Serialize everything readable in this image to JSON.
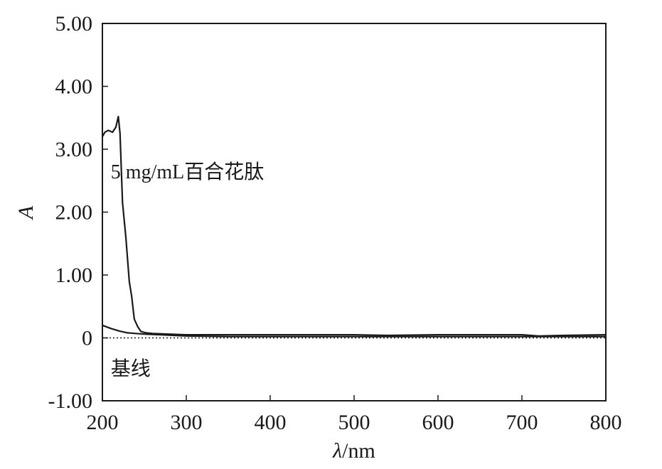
{
  "chart_data": {
    "type": "line",
    "xlabel_symbol": "λ",
    "xlabel_unit": "/nm",
    "ylabel": "A",
    "xlim": [
      200,
      800
    ],
    "ylim": [
      -1.0,
      5.0
    ],
    "x_ticks": [
      200,
      300,
      400,
      500,
      600,
      700,
      800
    ],
    "x_tick_labels": [
      "200",
      "300",
      "400",
      "500",
      "600",
      "700",
      "800"
    ],
    "y_ticks": [
      5.0,
      4.0,
      3.0,
      2.0,
      1.0,
      0,
      -1.0
    ],
    "y_tick_labels": [
      "5.00",
      "4.00",
      "3.00",
      "2.00",
      "1.00",
      "0",
      "-1.00"
    ],
    "grid": false,
    "series": [
      {
        "name": "5 mg/mL百合花肽",
        "style": "solid",
        "x": [
          200,
          203,
          207,
          212,
          216,
          219,
          221,
          224,
          228,
          232,
          235,
          238,
          242,
          246,
          252,
          260,
          280,
          300,
          400,
          500,
          540,
          600,
          700,
          720,
          750,
          800
        ],
        "y": [
          3.2,
          3.27,
          3.3,
          3.27,
          3.35,
          3.52,
          3.25,
          2.15,
          1.6,
          0.9,
          0.65,
          0.3,
          0.18,
          0.1,
          0.08,
          0.07,
          0.06,
          0.05,
          0.05,
          0.05,
          0.04,
          0.05,
          0.05,
          0.03,
          0.04,
          0.05
        ]
      },
      {
        "name": "",
        "style": "solid",
        "x": [
          200,
          210,
          220,
          230,
          240,
          250,
          270,
          300,
          350,
          400,
          500,
          600,
          700,
          720,
          760,
          800
        ],
        "y": [
          0.2,
          0.15,
          0.11,
          0.08,
          0.07,
          0.06,
          0.05,
          0.03,
          0.02,
          0.02,
          0.02,
          0.02,
          0.02,
          0.02,
          0.02,
          0.02
        ]
      },
      {
        "name": "基线",
        "style": "dotted",
        "x": [
          200,
          800
        ],
        "y": [
          0,
          0
        ]
      }
    ],
    "annotations": [
      {
        "text": "5 mg/mL百合花肽",
        "x": 210,
        "y": 2.65
      },
      {
        "text": "基线",
        "x": 210,
        "y": -0.48
      }
    ]
  }
}
